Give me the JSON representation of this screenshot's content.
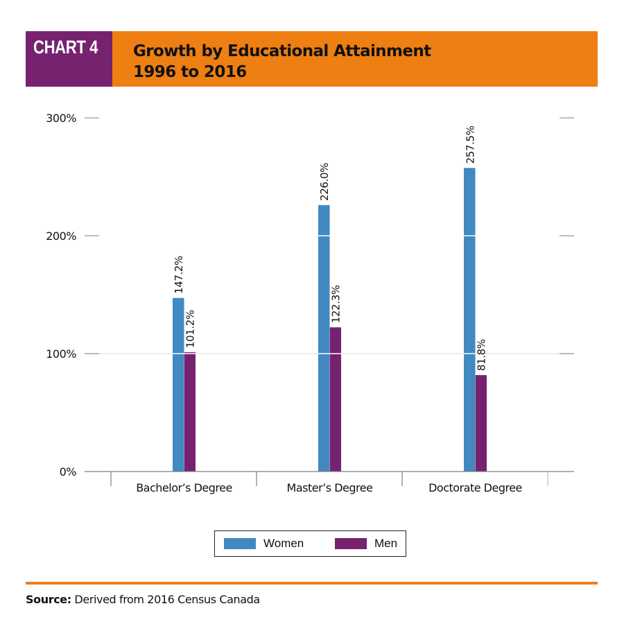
{
  "header": {
    "tag": "CHART 4",
    "title_line1": "Growth by Educational Attainment",
    "title_line2": "1996 to 2016"
  },
  "colors": {
    "header_orange": "#EE7F12",
    "header_purple": "#76226F",
    "women": "#4189C0",
    "men": "#76226F",
    "axis": "#7f7f7f",
    "gridline": "#e6e6e6"
  },
  "chart_data": {
    "type": "bar",
    "title": "Growth by Educational Attainment 1996 to 2016",
    "xlabel": "",
    "ylabel": "",
    "categories": [
      "Bachelor’s Degree",
      "Master’s Degree",
      "Doctorate Degree"
    ],
    "series": [
      {
        "name": "Women",
        "values": [
          147.2,
          226.0,
          257.5
        ],
        "labels": [
          "147.2%",
          "226.0%",
          "257.5%"
        ]
      },
      {
        "name": "Men",
        "values": [
          101.2,
          122.3,
          81.8
        ],
        "labels": [
          "101.2%",
          "122.3%",
          "81.8%"
        ]
      }
    ],
    "ylim": [
      0,
      300
    ],
    "yticks": [
      0,
      100,
      200,
      300
    ],
    "ytick_labels": [
      "0%",
      "100%",
      "200%",
      "300%"
    ],
    "grid": true,
    "legend_position": "bottom-center"
  },
  "legend": {
    "items": [
      {
        "label": "Women"
      },
      {
        "label": "Men"
      }
    ]
  },
  "footer": {
    "source_label": "Source:",
    "source_text": " Derived from 2016 Census Canada"
  }
}
